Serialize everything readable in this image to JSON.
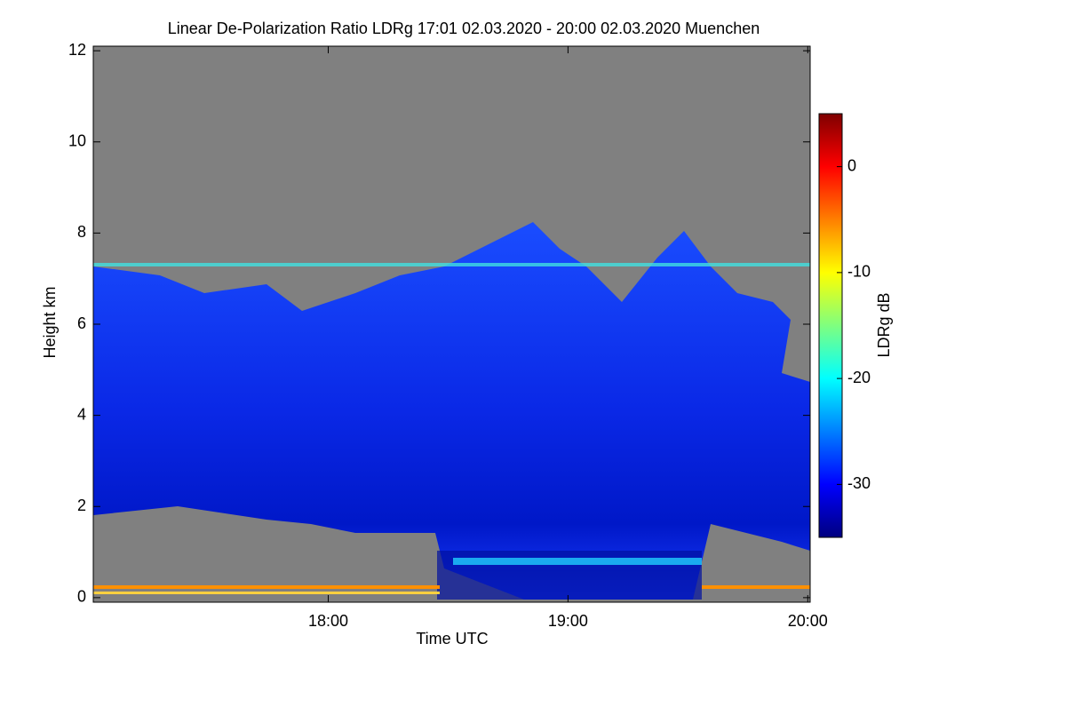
{
  "chart_data": {
    "type": "heatmap",
    "title": "Linear De-Polarization Ratio LDRg   17:01 02.03.2020 - 20:00 02.03.2020 Muenchen",
    "x_label": "Time UTC",
    "y_label": "Height km",
    "colorbar_label": "LDRg dB",
    "xlim": [
      17.02,
      20.01
    ],
    "xticks": [
      {
        "value": 18,
        "label": "18:00"
      },
      {
        "value": 19,
        "label": "19:00"
      },
      {
        "value": 20,
        "label": "20:00"
      }
    ],
    "ylim": [
      -0.1,
      12.1
    ],
    "yticks": [
      0,
      2,
      4,
      6,
      8,
      10,
      12
    ],
    "clim": [
      -35,
      5
    ],
    "cticks": [
      0,
      -10,
      -20,
      -30
    ],
    "colormap": "jet"
  }
}
